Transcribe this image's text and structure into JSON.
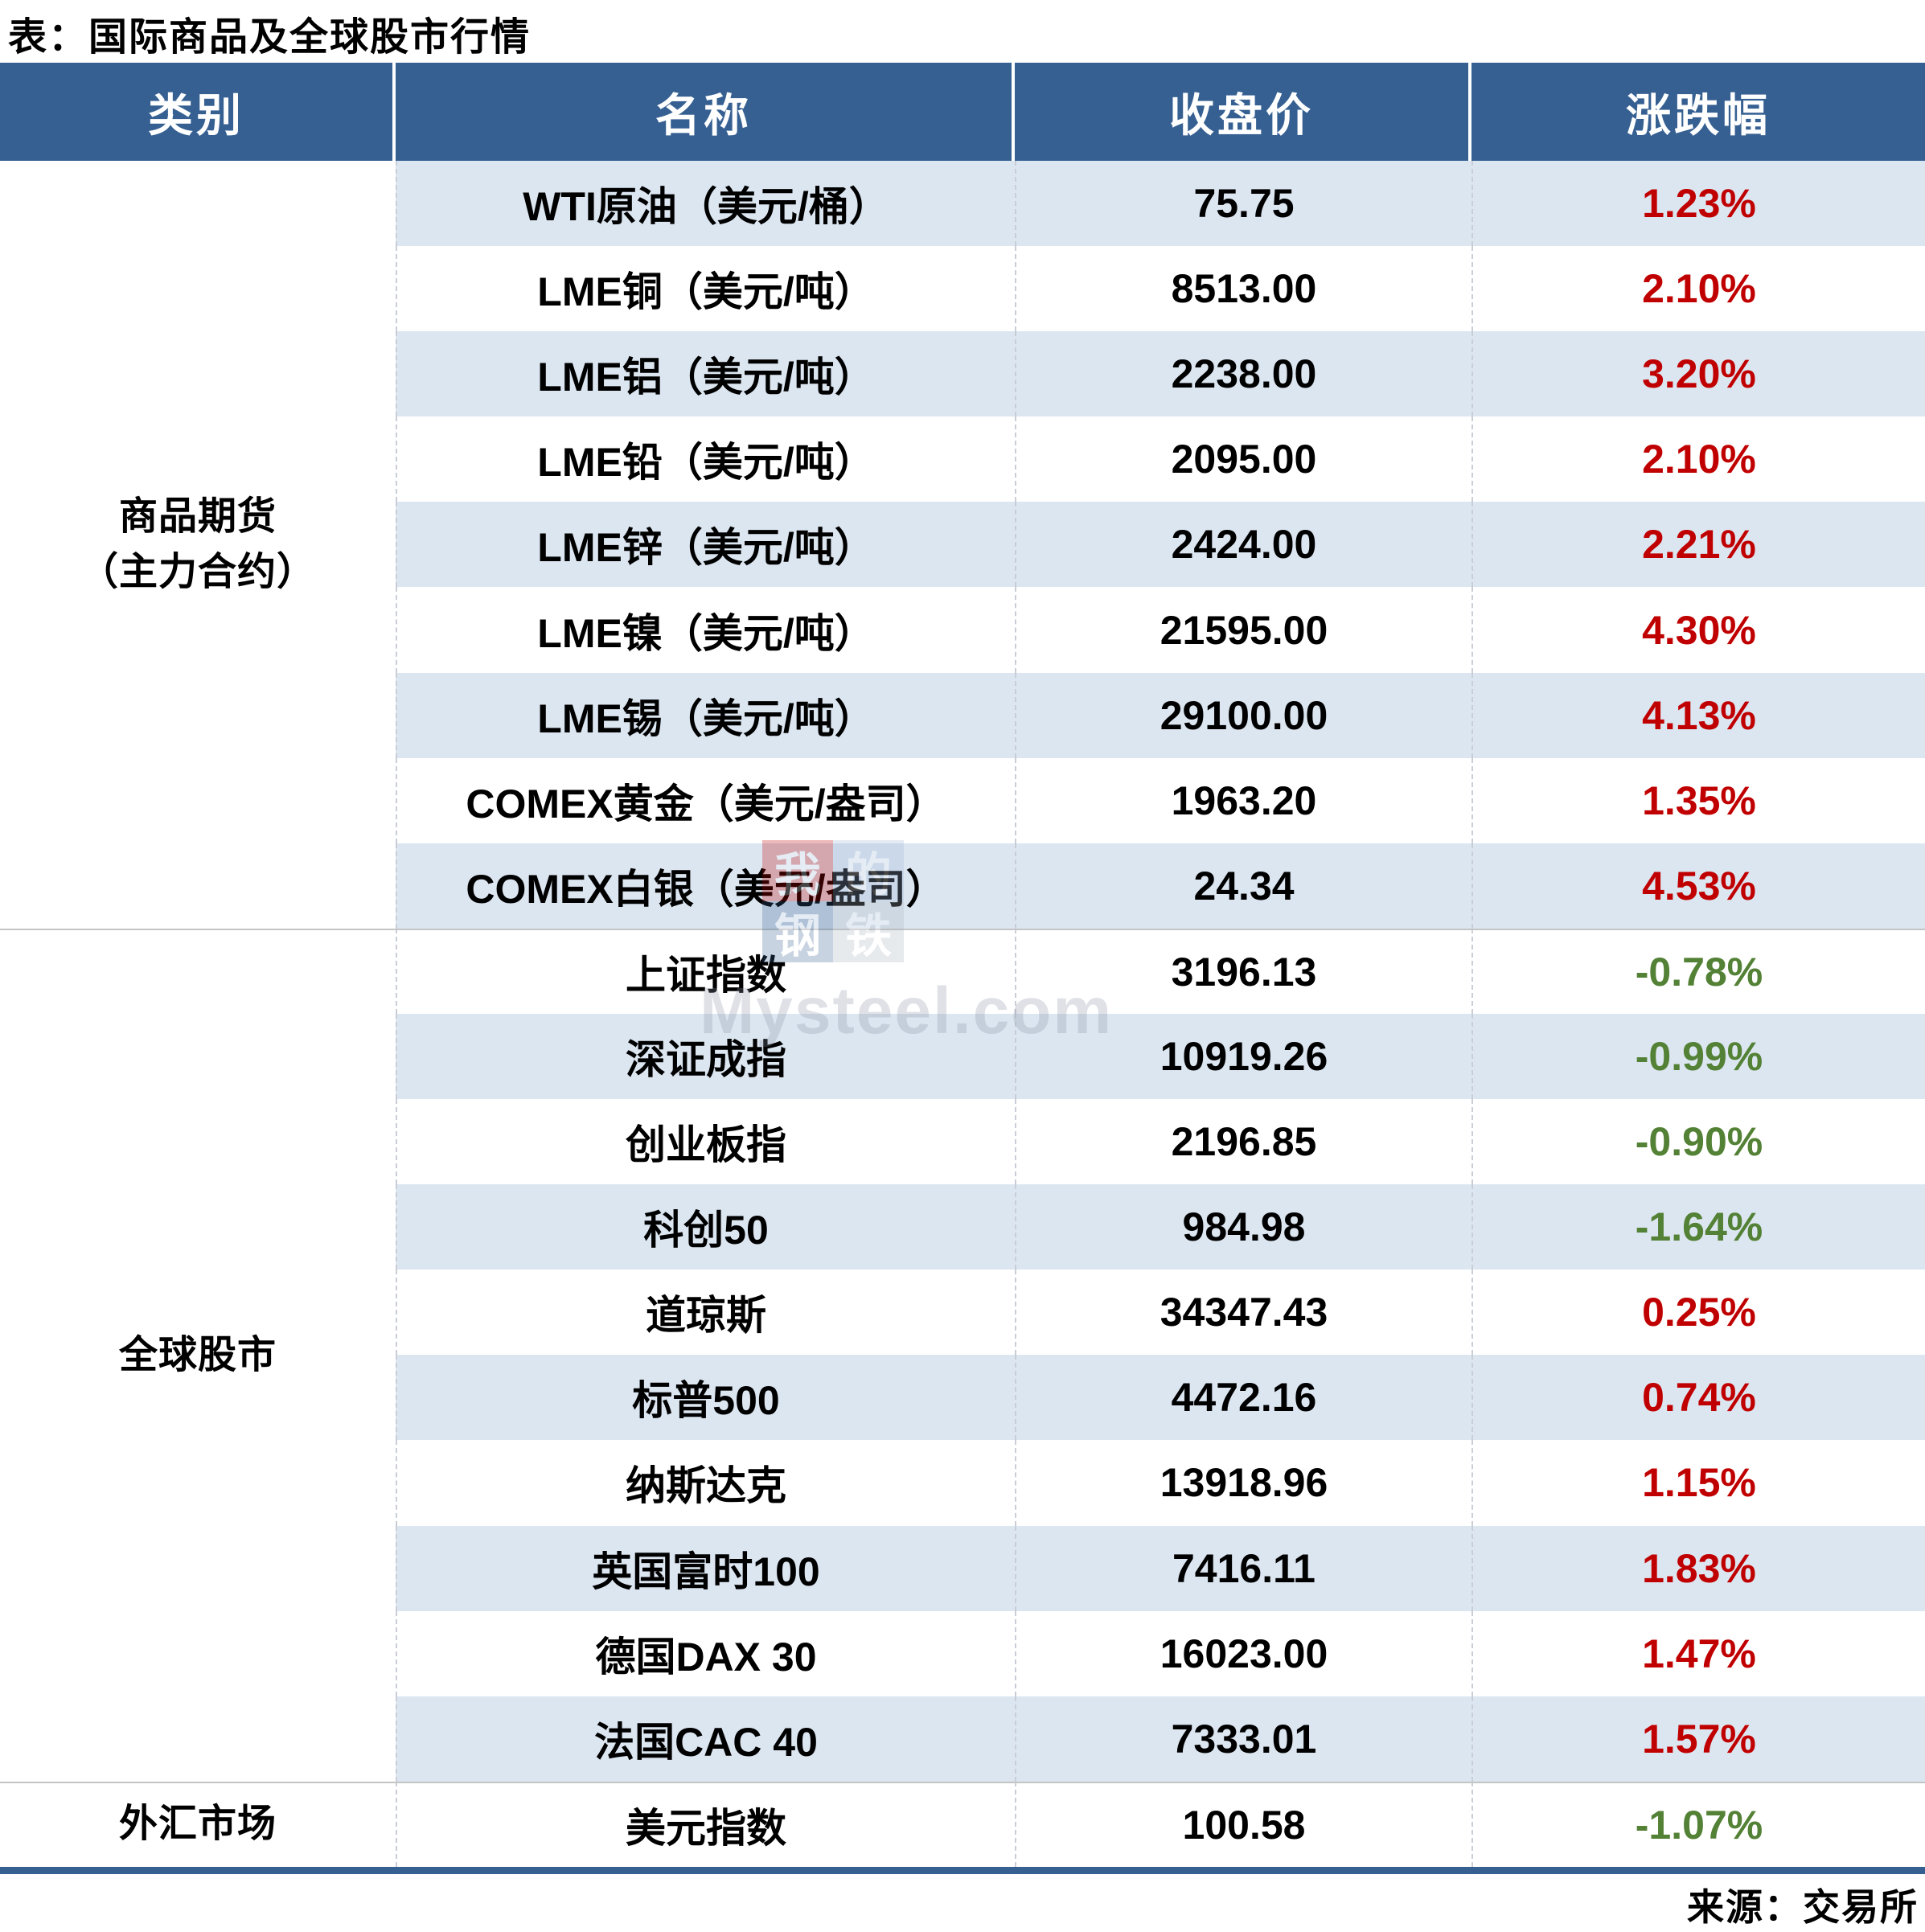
{
  "title": "表：国际商品及全球股市行情",
  "source": "来源：交易所",
  "watermark": {
    "logo_chars": [
      "我",
      "的",
      "钢",
      "铁"
    ],
    "text": "Mysteel.com"
  },
  "colors": {
    "header_bg": "#366092",
    "band": "#DCE6F1",
    "up_red": "#C00000",
    "down_green": "#538135",
    "bottom_bar": "#366092"
  },
  "table": {
    "headers": [
      "类别",
      "名称",
      "收盘价",
      "涨跌幅"
    ],
    "categories": [
      {
        "lines": [
          "商品期货",
          "（主力合约）"
        ],
        "rowspan": 9
      },
      {
        "lines": [
          "全球股市"
        ],
        "rowspan": 10
      },
      {
        "lines": [
          "外汇市场"
        ],
        "rowspan": 1
      }
    ],
    "rows": [
      {
        "name": "WTI原油（美元/桶）",
        "close": "75.75",
        "change": "1.23%",
        "direction": "up"
      },
      {
        "name": "LME铜（美元/吨）",
        "close": "8513.00",
        "change": "2.10%",
        "direction": "up"
      },
      {
        "name": "LME铝（美元/吨）",
        "close": "2238.00",
        "change": "3.20%",
        "direction": "up"
      },
      {
        "name": "LME铅（美元/吨）",
        "close": "2095.00",
        "change": "2.10%",
        "direction": "up"
      },
      {
        "name": "LME锌（美元/吨）",
        "close": "2424.00",
        "change": "2.21%",
        "direction": "up"
      },
      {
        "name": "LME镍（美元/吨）",
        "close": "21595.00",
        "change": "4.30%",
        "direction": "up"
      },
      {
        "name": "LME锡（美元/吨）",
        "close": "29100.00",
        "change": "4.13%",
        "direction": "up"
      },
      {
        "name": "COMEX黄金（美元/盎司）",
        "close": "1963.20",
        "change": "1.35%",
        "direction": "up"
      },
      {
        "name": "COMEX白银（美元/盎司）",
        "close": "24.34",
        "change": "4.53%",
        "direction": "up"
      },
      {
        "name": "上证指数",
        "close": "3196.13",
        "change": "-0.78%",
        "direction": "down"
      },
      {
        "name": "深证成指",
        "close": "10919.26",
        "change": "-0.99%",
        "direction": "down"
      },
      {
        "name": "创业板指",
        "close": "2196.85",
        "change": "-0.90%",
        "direction": "down"
      },
      {
        "name": "科创50",
        "close": "984.98",
        "change": "-1.64%",
        "direction": "down"
      },
      {
        "name": "道琼斯",
        "close": "34347.43",
        "change": "0.25%",
        "direction": "up"
      },
      {
        "name": "标普500",
        "close": "4472.16",
        "change": "0.74%",
        "direction": "up"
      },
      {
        "name": "纳斯达克",
        "close": "13918.96",
        "change": "1.15%",
        "direction": "up"
      },
      {
        "name": "英国富时100",
        "close": "7416.11",
        "change": "1.83%",
        "direction": "up"
      },
      {
        "name": "德国DAX 30",
        "close": "16023.00",
        "change": "1.47%",
        "direction": "up"
      },
      {
        "name": "法国CAC 40",
        "close": "7333.01",
        "change": "1.57%",
        "direction": "up"
      },
      {
        "name": "美元指数",
        "close": "100.58",
        "change": "-1.07%",
        "direction": "down"
      }
    ]
  }
}
